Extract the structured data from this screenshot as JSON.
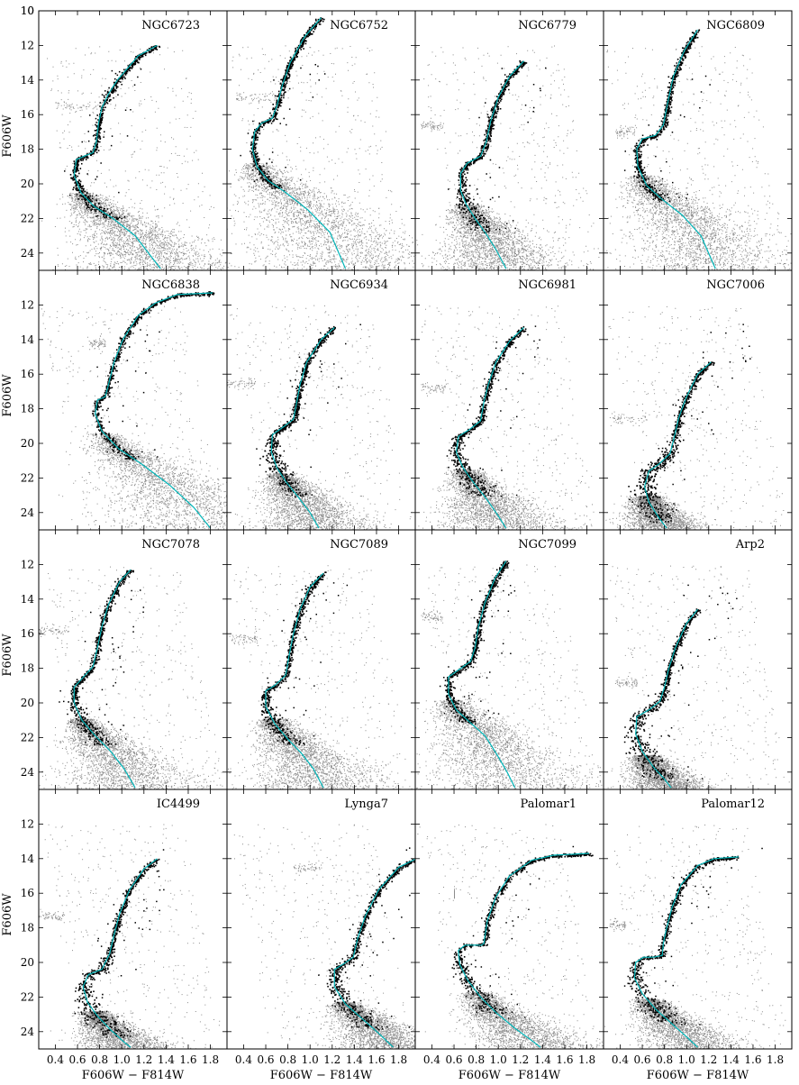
{
  "figure": {
    "ylabel": "F606W",
    "xlabel": "F606W − F814W",
    "xticks": [
      "0.4",
      "0.6",
      "0.8",
      "1.0",
      "1.2",
      "1.4",
      "1.6",
      "1.8"
    ],
    "yticks": [
      "10",
      "12",
      "14",
      "16",
      "18",
      "20",
      "22",
      "24"
    ],
    "colors": {
      "isochrone": "#00b5b8",
      "cluster_stars": "#000000",
      "field_stars": "#8c8c8c"
    }
  },
  "chart_data": [
    {
      "type": "scatter",
      "title": "NGC6723",
      "xlim": [
        0.25,
        1.95
      ],
      "ylim": [
        25,
        10
      ],
      "isochrone": [
        [
          1.32,
          12.0
        ],
        [
          1.15,
          12.6
        ],
        [
          0.96,
          14.0
        ],
        [
          0.88,
          14.8
        ],
        [
          0.82,
          15.6
        ],
        [
          0.79,
          16.5
        ],
        [
          0.77,
          17.6
        ],
        [
          0.74,
          18.2
        ],
        [
          0.68,
          18.35
        ],
        [
          0.59,
          18.6
        ],
        [
          0.57,
          19.5
        ],
        [
          0.63,
          20.5
        ],
        [
          0.75,
          21.3
        ],
        [
          0.92,
          22.0
        ],
        [
          1.12,
          23.0
        ],
        [
          1.35,
          24.9
        ]
      ],
      "cluster_stars_end": 22.0,
      "field_rgb": [
        0.4,
        0.82,
        15.5
      ]
    },
    {
      "type": "scatter",
      "title": "NGC6752",
      "xlim": [
        0.25,
        1.95
      ],
      "ylim": [
        25,
        10
      ],
      "isochrone": [
        [
          1.1,
          10.4
        ],
        [
          0.95,
          11.5
        ],
        [
          0.82,
          13.0
        ],
        [
          0.75,
          14.3
        ],
        [
          0.7,
          15.5
        ],
        [
          0.66,
          16.2
        ],
        [
          0.56,
          16.5
        ],
        [
          0.5,
          17.0
        ],
        [
          0.48,
          18.0
        ],
        [
          0.52,
          19.0
        ],
        [
          0.62,
          19.8
        ],
        [
          0.78,
          20.5
        ],
        [
          0.98,
          21.5
        ],
        [
          1.18,
          22.8
        ],
        [
          1.32,
          24.9
        ]
      ],
      "cluster_stars_end": 20.3,
      "field_rgb": [
        0.32,
        0.7,
        15.0
      ]
    },
    {
      "type": "scatter",
      "title": "NGC6779",
      "xlim": [
        0.25,
        1.95
      ],
      "ylim": [
        25,
        10
      ],
      "isochrone": [
        [
          1.23,
          12.9
        ],
        [
          1.1,
          13.8
        ],
        [
          1.0,
          15.0
        ],
        [
          0.93,
          16.4
        ],
        [
          0.89,
          17.6
        ],
        [
          0.84,
          18.4
        ],
        [
          0.72,
          18.8
        ],
        [
          0.66,
          19.4
        ],
        [
          0.66,
          20.4
        ],
        [
          0.71,
          21.2
        ],
        [
          0.79,
          22.0
        ],
        [
          0.88,
          22.8
        ],
        [
          0.98,
          23.8
        ],
        [
          1.07,
          24.9
        ]
      ],
      "cluster_stars_end": 22.7,
      "field_rgb": [
        0.3,
        0.5,
        16.6
      ]
    },
    {
      "type": "scatter",
      "title": "NGC6809",
      "xlim": [
        0.25,
        1.95
      ],
      "ylim": [
        25,
        10
      ],
      "isochrone": [
        [
          1.1,
          11.1
        ],
        [
          0.98,
          12.3
        ],
        [
          0.88,
          13.8
        ],
        [
          0.83,
          15.3
        ],
        [
          0.79,
          16.6
        ],
        [
          0.72,
          17.2
        ],
        [
          0.6,
          17.4
        ],
        [
          0.55,
          18.0
        ],
        [
          0.56,
          19.0
        ],
        [
          0.64,
          20.1
        ],
        [
          0.78,
          20.9
        ],
        [
          0.96,
          21.8
        ],
        [
          1.13,
          23.0
        ],
        [
          1.26,
          24.9
        ]
      ],
      "cluster_stars_end": 21.0,
      "field_rgb": [
        0.35,
        0.55,
        17.0
      ]
    },
    {
      "type": "scatter",
      "title": "NGC6838",
      "xlim": [
        0.25,
        1.95
      ],
      "ylim": [
        25,
        10
      ],
      "isochrone": [
        [
          1.82,
          11.3
        ],
        [
          1.5,
          11.4
        ],
        [
          1.3,
          11.9
        ],
        [
          1.15,
          12.6
        ],
        [
          1.01,
          14.0
        ],
        [
          0.93,
          15.3
        ],
        [
          0.88,
          16.6
        ],
        [
          0.85,
          17.3
        ],
        [
          0.78,
          17.5
        ],
        [
          0.76,
          18.3
        ],
        [
          0.82,
          19.3
        ],
        [
          0.97,
          20.3
        ],
        [
          1.18,
          21.2
        ],
        [
          1.43,
          22.4
        ],
        [
          1.65,
          23.7
        ],
        [
          1.8,
          24.9
        ]
      ],
      "cluster_stars_end": 20.9,
      "field_rgb": [
        0.7,
        0.85,
        14.2
      ]
    },
    {
      "type": "scatter",
      "title": "NGC6934",
      "xlim": [
        0.25,
        1.95
      ],
      "ylim": [
        25,
        10
      ],
      "isochrone": [
        [
          1.22,
          13.3
        ],
        [
          1.1,
          14.0
        ],
        [
          0.97,
          15.3
        ],
        [
          0.91,
          16.6
        ],
        [
          0.88,
          17.6
        ],
        [
          0.85,
          18.6
        ],
        [
          0.77,
          19.0
        ],
        [
          0.66,
          19.5
        ],
        [
          0.65,
          20.5
        ],
        [
          0.7,
          21.4
        ],
        [
          0.78,
          22.2
        ],
        [
          0.88,
          23.0
        ],
        [
          1.0,
          24.0
        ],
        [
          1.08,
          24.9
        ]
      ],
      "cluster_stars_end": 23.2,
      "field_rgb": [
        0.25,
        0.5,
        16.5
      ]
    },
    {
      "type": "scatter",
      "title": "NGC6981",
      "xlim": [
        0.25,
        1.95
      ],
      "ylim": [
        25,
        10
      ],
      "isochrone": [
        [
          1.23,
          13.3
        ],
        [
          1.1,
          14.1
        ],
        [
          0.98,
          15.3
        ],
        [
          0.91,
          16.6
        ],
        [
          0.87,
          17.6
        ],
        [
          0.84,
          18.7
        ],
        [
          0.74,
          19.2
        ],
        [
          0.64,
          19.6
        ],
        [
          0.62,
          20.5
        ],
        [
          0.68,
          21.4
        ],
        [
          0.78,
          22.3
        ],
        [
          0.88,
          23.1
        ],
        [
          0.98,
          24.0
        ],
        [
          1.07,
          24.9
        ]
      ],
      "cluster_stars_end": 23.0,
      "field_rgb": [
        0.3,
        0.52,
        16.8
      ]
    },
    {
      "type": "scatter",
      "title": "NGC7006",
      "xlim": [
        0.25,
        1.95
      ],
      "ylim": [
        25,
        10
      ],
      "isochrone": [
        [
          1.22,
          15.3
        ],
        [
          1.1,
          16.0
        ],
        [
          1.0,
          17.3
        ],
        [
          0.93,
          18.5
        ],
        [
          0.89,
          19.6
        ],
        [
          0.85,
          20.6
        ],
        [
          0.75,
          21.2
        ],
        [
          0.66,
          21.6
        ],
        [
          0.62,
          22.5
        ],
        [
          0.66,
          23.4
        ],
        [
          0.75,
          24.3
        ],
        [
          0.82,
          24.9
        ]
      ],
      "cluster_stars_end": 24.5,
      "field_rgb": [
        0.3,
        0.65,
        18.5
      ]
    },
    {
      "type": "scatter",
      "title": "NGC7078",
      "xlim": [
        0.25,
        1.95
      ],
      "ylim": [
        25,
        10
      ],
      "isochrone": [
        [
          1.08,
          12.3
        ],
        [
          0.98,
          13.0
        ],
        [
          0.88,
          14.3
        ],
        [
          0.82,
          15.6
        ],
        [
          0.78,
          16.8
        ],
        [
          0.74,
          17.9
        ],
        [
          0.64,
          18.6
        ],
        [
          0.57,
          19.1
        ],
        [
          0.57,
          20.0
        ],
        [
          0.64,
          21.0
        ],
        [
          0.76,
          21.9
        ],
        [
          0.9,
          22.8
        ],
        [
          1.02,
          23.8
        ],
        [
          1.12,
          24.9
        ]
      ],
      "cluster_stars_end": 22.4,
      "field_rgb": [
        0.25,
        0.52,
        15.8
      ]
    },
    {
      "type": "scatter",
      "title": "NGC7089",
      "xlim": [
        0.25,
        1.95
      ],
      "ylim": [
        25,
        10
      ],
      "isochrone": [
        [
          1.12,
          12.5
        ],
        [
          1.0,
          13.3
        ],
        [
          0.91,
          14.6
        ],
        [
          0.85,
          16.0
        ],
        [
          0.81,
          17.3
        ],
        [
          0.78,
          18.4
        ],
        [
          0.68,
          19.0
        ],
        [
          0.6,
          19.3
        ],
        [
          0.6,
          20.2
        ],
        [
          0.68,
          21.2
        ],
        [
          0.8,
          22.1
        ],
        [
          0.92,
          22.9
        ],
        [
          1.03,
          23.8
        ],
        [
          1.12,
          24.9
        ]
      ],
      "cluster_stars_end": 22.4,
      "field_rgb": [
        0.27,
        0.55,
        16.3
      ]
    },
    {
      "type": "scatter",
      "title": "NGC7099",
      "xlim": [
        0.25,
        1.95
      ],
      "ylim": [
        25,
        10
      ],
      "isochrone": [
        [
          1.07,
          11.8
        ],
        [
          0.97,
          12.8
        ],
        [
          0.88,
          14.2
        ],
        [
          0.82,
          15.6
        ],
        [
          0.79,
          16.8
        ],
        [
          0.75,
          17.6
        ],
        [
          0.64,
          18.1
        ],
        [
          0.55,
          18.5
        ],
        [
          0.55,
          19.5
        ],
        [
          0.62,
          20.4
        ],
        [
          0.74,
          21.1
        ],
        [
          0.88,
          21.9
        ],
        [
          0.98,
          22.9
        ],
        [
          1.08,
          24.0
        ],
        [
          1.15,
          24.9
        ]
      ],
      "cluster_stars_end": 21.3,
      "field_rgb": [
        0.3,
        0.5,
        15.0
      ]
    },
    {
      "type": "scatter",
      "title": "Arp2",
      "xlim": [
        0.25,
        1.95
      ],
      "ylim": [
        25,
        10
      ],
      "isochrone": [
        [
          1.1,
          14.6
        ],
        [
          1.0,
          15.4
        ],
        [
          0.9,
          16.8
        ],
        [
          0.84,
          18.0
        ],
        [
          0.8,
          19.1
        ],
        [
          0.76,
          19.9
        ],
        [
          0.66,
          20.4
        ],
        [
          0.55,
          20.8
        ],
        [
          0.54,
          21.8
        ],
        [
          0.6,
          22.8
        ],
        [
          0.7,
          23.7
        ],
        [
          0.8,
          24.4
        ],
        [
          0.86,
          24.9
        ]
      ],
      "cluster_stars_end": 24.5,
      "field_rgb": [
        0.35,
        0.55,
        18.8
      ]
    },
    {
      "type": "scatter",
      "title": "IC4499",
      "xlim": [
        0.25,
        1.95
      ],
      "ylim": [
        25,
        10
      ],
      "isochrone": [
        [
          1.32,
          14.0
        ],
        [
          1.2,
          14.6
        ],
        [
          1.07,
          15.8
        ],
        [
          0.98,
          17.2
        ],
        [
          0.93,
          18.4
        ],
        [
          0.89,
          19.5
        ],
        [
          0.82,
          20.4
        ],
        [
          0.7,
          20.7
        ],
        [
          0.65,
          21.4
        ],
        [
          0.69,
          22.3
        ],
        [
          0.78,
          23.1
        ],
        [
          0.9,
          23.9
        ],
        [
          1.02,
          24.6
        ],
        [
          1.08,
          24.9
        ]
      ],
      "cluster_stars_end": 24.3,
      "field_rgb": [
        0.25,
        0.48,
        17.3
      ]
    },
    {
      "type": "scatter",
      "title": "Lynga7",
      "xlim": [
        0.25,
        1.95
      ],
      "ylim": [
        25,
        10
      ],
      "isochrone": [
        [
          1.96,
          14.0
        ],
        [
          1.8,
          14.5
        ],
        [
          1.62,
          15.8
        ],
        [
          1.5,
          17.3
        ],
        [
          1.43,
          18.6
        ],
        [
          1.39,
          19.7
        ],
        [
          1.3,
          20.1
        ],
        [
          1.22,
          20.4
        ],
        [
          1.22,
          21.4
        ],
        [
          1.32,
          22.4
        ],
        [
          1.48,
          23.3
        ],
        [
          1.62,
          24.1
        ],
        [
          1.75,
          24.9
        ]
      ],
      "cluster_stars_end": 23.8,
      "field_rgb": [
        0.85,
        1.1,
        14.5
      ]
    },
    {
      "type": "scatter",
      "title": "Palomar1",
      "xlim": [
        0.25,
        1.95
      ],
      "ylim": [
        25,
        10
      ],
      "isochrone": [
        [
          1.82,
          13.7
        ],
        [
          1.5,
          13.8
        ],
        [
          1.3,
          14.1
        ],
        [
          1.1,
          15.0
        ],
        [
          0.98,
          16.2
        ],
        [
          0.9,
          17.6
        ],
        [
          0.87,
          18.9
        ],
        [
          0.85,
          19.0
        ],
        [
          0.8,
          19.0
        ],
        [
          0.7,
          19.0
        ],
        [
          0.64,
          19.3
        ],
        [
          0.65,
          20.1
        ],
        [
          0.72,
          21.0
        ],
        [
          0.84,
          22.0
        ],
        [
          0.98,
          22.9
        ],
        [
          1.15,
          23.8
        ],
        [
          1.32,
          24.6
        ],
        [
          1.38,
          24.9
        ]
      ],
      "cluster_stars_end": 23.2,
      "field_rgb": [
        0.6,
        0.6,
        16.0
      ]
    },
    {
      "type": "scatter",
      "title": "Palomar12",
      "xlim": [
        0.25,
        1.95
      ],
      "ylim": [
        25,
        10
      ],
      "isochrone": [
        [
          1.47,
          13.9
        ],
        [
          1.25,
          14.0
        ],
        [
          1.1,
          14.4
        ],
        [
          0.95,
          15.5
        ],
        [
          0.87,
          16.8
        ],
        [
          0.82,
          18.0
        ],
        [
          0.79,
          18.9
        ],
        [
          0.78,
          19.6
        ],
        [
          0.7,
          19.7
        ],
        [
          0.61,
          19.7
        ],
        [
          0.54,
          20.0
        ],
        [
          0.53,
          20.9
        ],
        [
          0.6,
          21.8
        ],
        [
          0.72,
          22.7
        ],
        [
          0.86,
          23.5
        ],
        [
          1.0,
          24.3
        ],
        [
          1.1,
          24.9
        ]
      ],
      "cluster_stars_end": 23.6,
      "field_rgb": [
        0.3,
        0.45,
        17.8
      ]
    }
  ]
}
